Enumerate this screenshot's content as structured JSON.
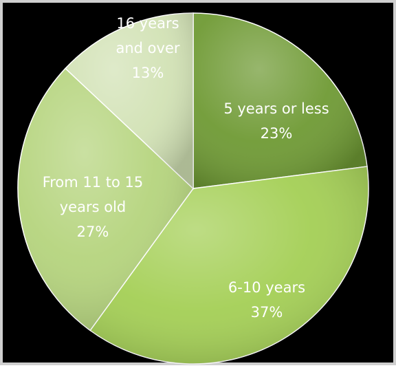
{
  "chart_data": {
    "type": "pie",
    "title": "",
    "slices": [
      {
        "label_lines": [
          "5 years or less"
        ],
        "percent_label": "23%",
        "value": 23,
        "color": "#6f9a34"
      },
      {
        "label_lines": [
          "6-10 years"
        ],
        "percent_label": "37%",
        "value": 37,
        "color": "#a4cf55"
      },
      {
        "label_lines": [
          "From 11 to 15",
          "years old"
        ],
        "percent_label": "27%",
        "value": 27,
        "color": "#b5d47d"
      },
      {
        "label_lines": [
          "16 years",
          "and over"
        ],
        "percent_label": "13%",
        "value": 13,
        "color": "#d2e2b5"
      }
    ],
    "start_angle_deg": 0,
    "direction": "clockwise",
    "legend": "none"
  }
}
